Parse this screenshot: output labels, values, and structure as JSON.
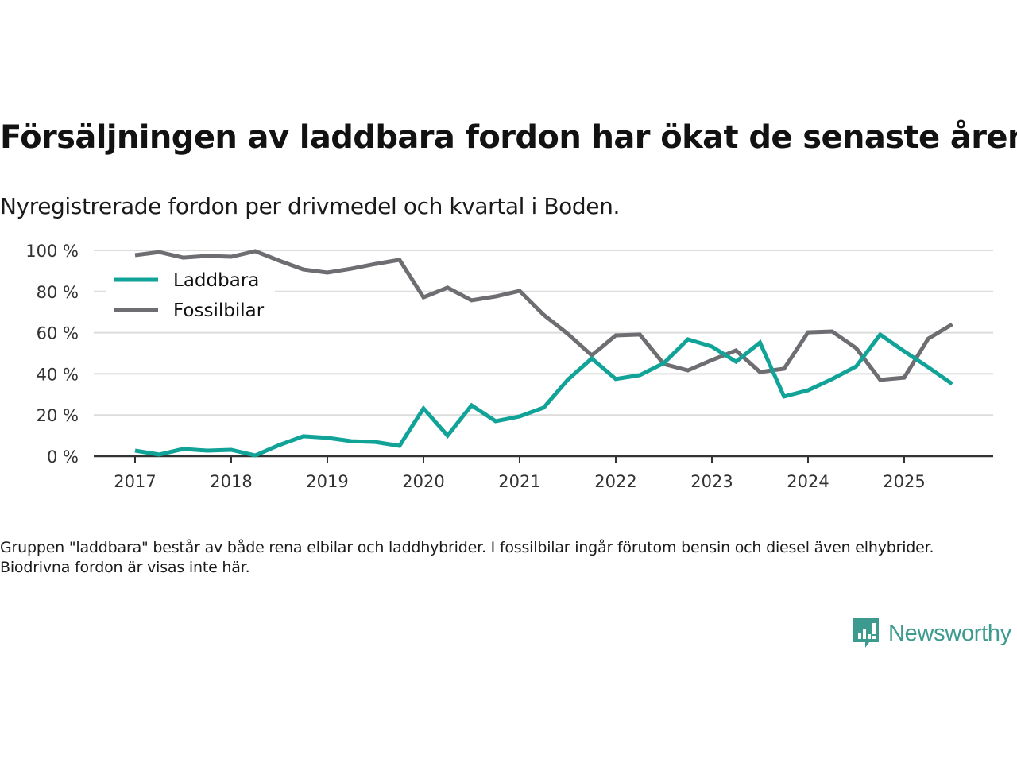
{
  "header": {
    "title": "Försäljningen av laddbara fordon har ökat de senaste åren",
    "subtitle": "Nyregistrerade fordon per drivmedel och kvartal i Boden."
  },
  "footer": {
    "note": "Gruppen \"laddbara\" består av både rena elbilar och laddhybrider. I fossilbilar ingår förutom bensin och diesel även elhybrider. Biodrivna fordon är visas inte här.",
    "brand_name": "Newsworthy",
    "brand_icon": "bar-chart-speech-bubble-icon",
    "brand_color": "#3d9a8f"
  },
  "chart_data": {
    "type": "line",
    "title": "Försäljningen av laddbara fordon har ökat de senaste åren",
    "subtitle": "Nyregistrerade fordon per drivmedel och kvartal i Boden.",
    "xlabel": "",
    "ylabel": "",
    "x": [
      "2017-Q1",
      "2017-Q2",
      "2017-Q3",
      "2017-Q4",
      "2018-Q1",
      "2018-Q2",
      "2018-Q3",
      "2018-Q4",
      "2019-Q1",
      "2019-Q2",
      "2019-Q3",
      "2019-Q4",
      "2020-Q1",
      "2020-Q2",
      "2020-Q3",
      "2020-Q4",
      "2021-Q1",
      "2021-Q2",
      "2021-Q3",
      "2021-Q4",
      "2022-Q1",
      "2022-Q2",
      "2022-Q3",
      "2022-Q4",
      "2023-Q1",
      "2023-Q2",
      "2023-Q3",
      "2023-Q4",
      "2024-Q1",
      "2024-Q2",
      "2024-Q3",
      "2024-Q4",
      "2025-Q1",
      "2025-Q2",
      "2025-Q3"
    ],
    "x_ticks": [
      "2017",
      "2018",
      "2019",
      "2020",
      "2021",
      "2022",
      "2023",
      "2024",
      "2025"
    ],
    "y_ticks": [
      0,
      20,
      40,
      60,
      80,
      100
    ],
    "y_tick_labels": [
      "0 %",
      "20 %",
      "40 %",
      "60 %",
      "80 %",
      "100 %"
    ],
    "ylim": [
      0,
      100
    ],
    "grid": true,
    "legend_position": "top-left",
    "series": [
      {
        "name": "Laddbara",
        "color": "#11a398",
        "values": [
          2.7,
          0.8,
          3.5,
          2.7,
          3.1,
          0.4,
          5.4,
          9.7,
          8.9,
          7.3,
          6.9,
          5.0,
          23.2,
          10.0,
          24.7,
          17.0,
          19.3,
          23.6,
          37.1,
          47.5,
          37.5,
          39.4,
          45.2,
          56.8,
          53.3,
          45.9,
          55.2,
          29.0,
          32.0,
          37.5,
          43.6,
          59.1,
          51.0,
          43.2,
          35.1
        ]
      },
      {
        "name": "Fossilbilar",
        "color": "#6e6e72",
        "values": [
          97.7,
          99.2,
          96.5,
          97.3,
          96.9,
          99.6,
          95.0,
          90.7,
          89.2,
          91.1,
          93.4,
          95.4,
          77.2,
          81.9,
          75.7,
          77.6,
          80.3,
          68.7,
          59.5,
          49.0,
          58.7,
          59.1,
          44.8,
          41.7,
          46.7,
          51.4,
          40.9,
          42.5,
          60.2,
          60.6,
          52.5,
          37.1,
          38.2,
          57.1,
          64.1
        ]
      }
    ]
  }
}
